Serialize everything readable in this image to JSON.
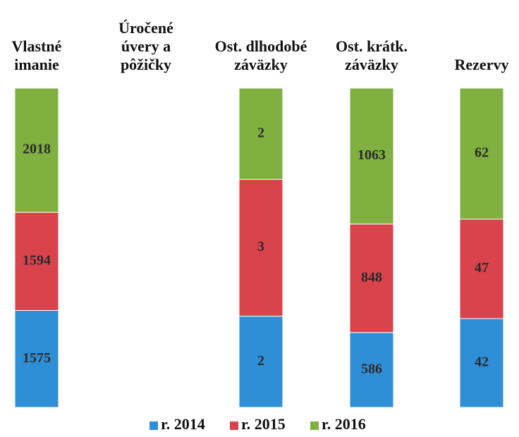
{
  "chart_data": {
    "type": "bar",
    "stacked": "percent",
    "categories": [
      "Vlastné imanie",
      "Úročené úvery a pôžičky",
      "Ost. dlhodobé záväzky",
      "Ost. krátk. záväzky",
      "Rezervy"
    ],
    "series": [
      {
        "name": "r. 2014",
        "color": "#2f8fd6",
        "values": [
          1575,
          null,
          2,
          586,
          42
        ]
      },
      {
        "name": "r. 2015",
        "color": "#d8434c",
        "values": [
          1594,
          null,
          3,
          848,
          47
        ]
      },
      {
        "name": "r. 2016",
        "color": "#80b040",
        "values": [
          2018,
          null,
          2,
          1063,
          62
        ]
      }
    ],
    "legend": "bottom"
  }
}
